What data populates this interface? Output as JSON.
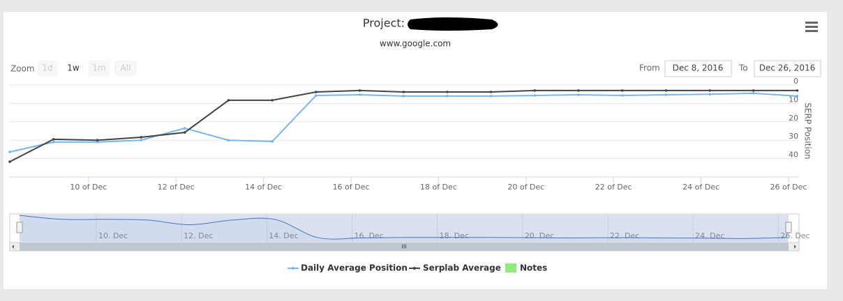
{
  "ui": {
    "zoom_label": "Zoom",
    "zoom_buttons": [
      "1d",
      "1w",
      "1m",
      "All"
    ],
    "selected_zoom": 1,
    "from_label": "From",
    "from": "Dec 8, 2016",
    "to_label": "To",
    "to": "Dec 26, 2016"
  },
  "chart_data": {
    "type": "line",
    "title": "Project:",
    "subtitle": "www.google.com",
    "y_axis_label": "SERP Position",
    "x": [
      8.2,
      9.2,
      10.2,
      11.2,
      12.2,
      13.2,
      14.2,
      15.2,
      16.2,
      17.2,
      18.2,
      19.2,
      20.2,
      21.2,
      22.2,
      23.2,
      24.2,
      25.2,
      26.2
    ],
    "xlim": [
      8.2,
      26.24
    ],
    "xticks": [
      {
        "value": 10,
        "label": "10 of Dec"
      },
      {
        "value": 12,
        "label": "12 of Dec"
      },
      {
        "value": 14,
        "label": "14 of Dec"
      },
      {
        "value": 16,
        "label": "16 of Dec"
      },
      {
        "value": 18,
        "label": "18 of Dec"
      },
      {
        "value": 20,
        "label": "20 of Dec"
      },
      {
        "value": 22,
        "label": "22 of Dec"
      },
      {
        "value": 24,
        "label": "24 of Dec"
      },
      {
        "value": 26,
        "label": "26 of Dec"
      }
    ],
    "ylim": [
      0,
      50
    ],
    "yticks": [
      0,
      10,
      20,
      30,
      40
    ],
    "y_reversed": true,
    "grid": true,
    "series": [
      {
        "name": "Daily Average Position",
        "color": "#7cb5ec",
        "values": [
          36.4,
          31,
          31,
          30,
          23.5,
          30,
          30.7,
          5.7,
          5.3,
          6,
          6,
          6,
          5.7,
          5.3,
          5.7,
          5.3,
          5,
          4.5,
          6
        ]
      },
      {
        "name": "Serplab Average",
        "color": "#434348",
        "values": [
          41.7,
          29.5,
          30,
          28.4,
          25.8,
          8.3,
          8.3,
          3.8,
          3,
          3.8,
          3.8,
          3.8,
          3,
          3,
          3,
          3,
          3,
          3,
          3
        ]
      }
    ],
    "notes": {
      "name": "Notes",
      "color": "#90ed7d"
    },
    "navigator": {
      "series": 0,
      "xticks": [
        {
          "value": 10,
          "label": "10. Dec"
        },
        {
          "value": 12,
          "label": "12. Dec"
        },
        {
          "value": 14,
          "label": "14. Dec"
        },
        {
          "value": 16,
          "label": "16. Dec"
        },
        {
          "value": 18,
          "label": "18. Dec"
        },
        {
          "value": 20,
          "label": "20. Dec"
        },
        {
          "value": 22,
          "label": "22. Dec"
        },
        {
          "value": 24,
          "label": "24. Dec"
        },
        {
          "value": 26,
          "label": "26. Dec"
        }
      ]
    }
  }
}
